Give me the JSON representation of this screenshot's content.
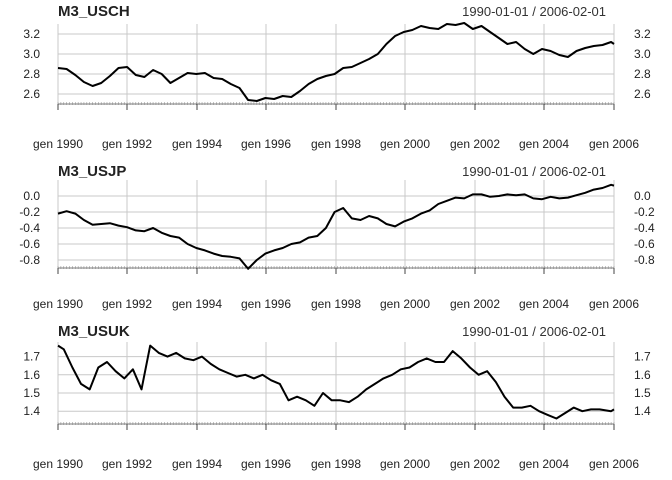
{
  "chart_data": [
    {
      "type": "line",
      "title": "M3_USCH",
      "date_range_label": "1990-01-01 / 2006-02-01",
      "x_ticks": [
        "gen 1990",
        "gen 1992",
        "gen 1994",
        "gen 1996",
        "gen 1998",
        "gen 2000",
        "gen 2002",
        "gen 2004",
        "gen 2006"
      ],
      "y_ticks": [
        "2.6",
        "2.8",
        "3.0",
        "3.2"
      ],
      "ylim": [
        2.5,
        3.3
      ],
      "xlim": [
        "1990-01",
        "2006-02"
      ],
      "grid": true,
      "axes_labels_both_sides": true,
      "line_color": "#000000",
      "series": [
        {
          "values": [
            [
              "1990-01",
              2.86
            ],
            [
              "1990-04",
              2.85
            ],
            [
              "1990-07",
              2.79
            ],
            [
              "1990-10",
              2.72
            ],
            [
              "1991-01",
              2.68
            ],
            [
              "1991-04",
              2.71
            ],
            [
              "1991-07",
              2.78
            ],
            [
              "1991-10",
              2.86
            ],
            [
              "1992-01",
              2.87
            ],
            [
              "1992-04",
              2.79
            ],
            [
              "1992-07",
              2.77
            ],
            [
              "1992-10",
              2.84
            ],
            [
              "1993-01",
              2.8
            ],
            [
              "1993-04",
              2.71
            ],
            [
              "1993-07",
              2.76
            ],
            [
              "1993-10",
              2.81
            ],
            [
              "1994-01",
              2.8
            ],
            [
              "1994-04",
              2.81
            ],
            [
              "1994-07",
              2.76
            ],
            [
              "1994-10",
              2.75
            ],
            [
              "1995-01",
              2.7
            ],
            [
              "1995-04",
              2.66
            ],
            [
              "1995-07",
              2.54
            ],
            [
              "1995-10",
              2.53
            ],
            [
              "1996-01",
              2.56
            ],
            [
              "1996-04",
              2.55
            ],
            [
              "1996-07",
              2.58
            ],
            [
              "1996-10",
              2.57
            ],
            [
              "1997-01",
              2.63
            ],
            [
              "1997-04",
              2.7
            ],
            [
              "1997-07",
              2.75
            ],
            [
              "1997-10",
              2.78
            ],
            [
              "1998-01",
              2.8
            ],
            [
              "1998-04",
              2.86
            ],
            [
              "1998-07",
              2.87
            ],
            [
              "1998-10",
              2.91
            ],
            [
              "1999-01",
              2.95
            ],
            [
              "1999-04",
              3.0
            ],
            [
              "1999-07",
              3.1
            ],
            [
              "1999-10",
              3.18
            ],
            [
              "2000-01",
              3.22
            ],
            [
              "2000-04",
              3.24
            ],
            [
              "2000-07",
              3.28
            ],
            [
              "2000-10",
              3.26
            ],
            [
              "2001-01",
              3.25
            ],
            [
              "2001-04",
              3.3
            ],
            [
              "2001-07",
              3.29
            ],
            [
              "2001-10",
              3.31
            ],
            [
              "2002-01",
              3.25
            ],
            [
              "2002-04",
              3.28
            ],
            [
              "2002-07",
              3.22
            ],
            [
              "2002-10",
              3.16
            ],
            [
              "2003-01",
              3.1
            ],
            [
              "2003-04",
              3.12
            ],
            [
              "2003-07",
              3.05
            ],
            [
              "2003-10",
              3.0
            ],
            [
              "2004-01",
              3.05
            ],
            [
              "2004-04",
              3.03
            ],
            [
              "2004-07",
              2.99
            ],
            [
              "2004-10",
              2.97
            ],
            [
              "2005-01",
              3.03
            ],
            [
              "2005-04",
              3.06
            ],
            [
              "2005-07",
              3.08
            ],
            [
              "2005-10",
              3.09
            ],
            [
              "2006-01",
              3.12
            ],
            [
              "2006-02",
              3.1
            ]
          ]
        }
      ]
    },
    {
      "type": "line",
      "title": "M3_USJP",
      "date_range_label": "1990-01-01 / 2006-02-01",
      "x_ticks": [
        "gen 1990",
        "gen 1992",
        "gen 1994",
        "gen 1996",
        "gen 1998",
        "gen 2000",
        "gen 2002",
        "gen 2004",
        "gen 2006"
      ],
      "y_ticks": [
        "-0.8",
        "-0.6",
        "-0.4",
        "-0.2",
        "0.0"
      ],
      "ylim": [
        -0.9,
        0.2
      ],
      "xlim": [
        "1990-01",
        "2006-02"
      ],
      "grid": true,
      "axes_labels_both_sides": true,
      "line_color": "#000000",
      "series": [
        {
          "values": [
            [
              "1990-01",
              -0.22
            ],
            [
              "1990-04",
              -0.19
            ],
            [
              "1990-07",
              -0.22
            ],
            [
              "1990-10",
              -0.3
            ],
            [
              "1991-01",
              -0.36
            ],
            [
              "1991-04",
              -0.35
            ],
            [
              "1991-07",
              -0.34
            ],
            [
              "1991-10",
              -0.37
            ],
            [
              "1992-01",
              -0.39
            ],
            [
              "1992-04",
              -0.43
            ],
            [
              "1992-07",
              -0.44
            ],
            [
              "1992-10",
              -0.4
            ],
            [
              "1993-01",
              -0.46
            ],
            [
              "1993-04",
              -0.5
            ],
            [
              "1993-07",
              -0.52
            ],
            [
              "1993-10",
              -0.6
            ],
            [
              "1994-01",
              -0.65
            ],
            [
              "1994-04",
              -0.68
            ],
            [
              "1994-07",
              -0.72
            ],
            [
              "1994-10",
              -0.75
            ],
            [
              "1995-01",
              -0.76
            ],
            [
              "1995-04",
              -0.78
            ],
            [
              "1995-07",
              -0.91
            ],
            [
              "1995-10",
              -0.8
            ],
            [
              "1996-01",
              -0.72
            ],
            [
              "1996-04",
              -0.68
            ],
            [
              "1996-07",
              -0.65
            ],
            [
              "1996-10",
              -0.6
            ],
            [
              "1997-01",
              -0.58
            ],
            [
              "1997-04",
              -0.52
            ],
            [
              "1997-07",
              -0.5
            ],
            [
              "1997-10",
              -0.4
            ],
            [
              "1998-01",
              -0.2
            ],
            [
              "1998-04",
              -0.15
            ],
            [
              "1998-07",
              -0.28
            ],
            [
              "1998-10",
              -0.3
            ],
            [
              "1999-01",
              -0.25
            ],
            [
              "1999-04",
              -0.28
            ],
            [
              "1999-07",
              -0.35
            ],
            [
              "1999-10",
              -0.38
            ],
            [
              "2000-01",
              -0.32
            ],
            [
              "2000-04",
              -0.28
            ],
            [
              "2000-07",
              -0.22
            ],
            [
              "2000-10",
              -0.18
            ],
            [
              "2001-01",
              -0.1
            ],
            [
              "2001-04",
              -0.06
            ],
            [
              "2001-07",
              -0.02
            ],
            [
              "2001-10",
              -0.03
            ],
            [
              "2002-01",
              0.02
            ],
            [
              "2002-04",
              0.02
            ],
            [
              "2002-07",
              -0.01
            ],
            [
              "2002-10",
              0.0
            ],
            [
              "2003-01",
              0.02
            ],
            [
              "2003-04",
              0.01
            ],
            [
              "2003-07",
              0.02
            ],
            [
              "2003-10",
              -0.03
            ],
            [
              "2004-01",
              -0.04
            ],
            [
              "2004-04",
              -0.01
            ],
            [
              "2004-07",
              -0.03
            ],
            [
              "2004-10",
              -0.02
            ],
            [
              "2005-01",
              0.01
            ],
            [
              "2005-04",
              0.04
            ],
            [
              "2005-07",
              0.08
            ],
            [
              "2005-10",
              0.1
            ],
            [
              "2006-01",
              0.14
            ],
            [
              "2006-02",
              0.13
            ]
          ]
        }
      ]
    },
    {
      "type": "line",
      "title": "M3_USUK",
      "date_range_label": "1990-01-01 / 2006-02-01",
      "x_ticks": [
        "gen 1990",
        "gen 1992",
        "gen 1994",
        "gen 1996",
        "gen 1998",
        "gen 2000",
        "gen 2002",
        "gen 2004",
        "gen 2006"
      ],
      "y_ticks": [
        "1.4",
        "1.5",
        "1.6",
        "1.7"
      ],
      "ylim": [
        1.33,
        1.78
      ],
      "xlim": [
        "1990-01",
        "2006-02"
      ],
      "grid": true,
      "axes_labels_both_sides": true,
      "line_color": "#000000",
      "series": [
        {
          "values": [
            [
              "1990-01",
              1.76
            ],
            [
              "1990-03",
              1.74
            ],
            [
              "1990-06",
              1.64
            ],
            [
              "1990-09",
              1.55
            ],
            [
              "1990-12",
              1.52
            ],
            [
              "1991-03",
              1.64
            ],
            [
              "1991-06",
              1.67
            ],
            [
              "1991-09",
              1.62
            ],
            [
              "1991-12",
              1.58
            ],
            [
              "1992-03",
              1.63
            ],
            [
              "1992-06",
              1.52
            ],
            [
              "1992-09",
              1.76
            ],
            [
              "1992-12",
              1.72
            ],
            [
              "1993-03",
              1.7
            ],
            [
              "1993-06",
              1.72
            ],
            [
              "1993-09",
              1.69
            ],
            [
              "1993-12",
              1.68
            ],
            [
              "1994-03",
              1.7
            ],
            [
              "1994-06",
              1.66
            ],
            [
              "1994-09",
              1.63
            ],
            [
              "1994-12",
              1.61
            ],
            [
              "1995-03",
              1.59
            ],
            [
              "1995-06",
              1.6
            ],
            [
              "1995-09",
              1.58
            ],
            [
              "1995-12",
              1.6
            ],
            [
              "1996-03",
              1.57
            ],
            [
              "1996-06",
              1.55
            ],
            [
              "1996-09",
              1.46
            ],
            [
              "1996-12",
              1.48
            ],
            [
              "1997-03",
              1.46
            ],
            [
              "1997-06",
              1.43
            ],
            [
              "1997-09",
              1.5
            ],
            [
              "1997-12",
              1.46
            ],
            [
              "1998-03",
              1.46
            ],
            [
              "1998-06",
              1.45
            ],
            [
              "1998-09",
              1.48
            ],
            [
              "1998-12",
              1.52
            ],
            [
              "1999-03",
              1.55
            ],
            [
              "1999-06",
              1.58
            ],
            [
              "1999-09",
              1.6
            ],
            [
              "1999-12",
              1.63
            ],
            [
              "2000-03",
              1.64
            ],
            [
              "2000-06",
              1.67
            ],
            [
              "2000-09",
              1.69
            ],
            [
              "2000-12",
              1.67
            ],
            [
              "2001-03",
              1.67
            ],
            [
              "2001-06",
              1.73
            ],
            [
              "2001-09",
              1.69
            ],
            [
              "2001-12",
              1.64
            ],
            [
              "2002-03",
              1.6
            ],
            [
              "2002-06",
              1.62
            ],
            [
              "2002-09",
              1.56
            ],
            [
              "2002-12",
              1.48
            ],
            [
              "2003-03",
              1.42
            ],
            [
              "2003-06",
              1.42
            ],
            [
              "2003-09",
              1.43
            ],
            [
              "2003-12",
              1.4
            ],
            [
              "2004-03",
              1.38
            ],
            [
              "2004-06",
              1.36
            ],
            [
              "2004-09",
              1.39
            ],
            [
              "2004-12",
              1.42
            ],
            [
              "2005-03",
              1.4
            ],
            [
              "2005-06",
              1.41
            ],
            [
              "2005-09",
              1.41
            ],
            [
              "2006-01",
              1.4
            ],
            [
              "2006-02",
              1.41
            ]
          ]
        }
      ]
    }
  ]
}
